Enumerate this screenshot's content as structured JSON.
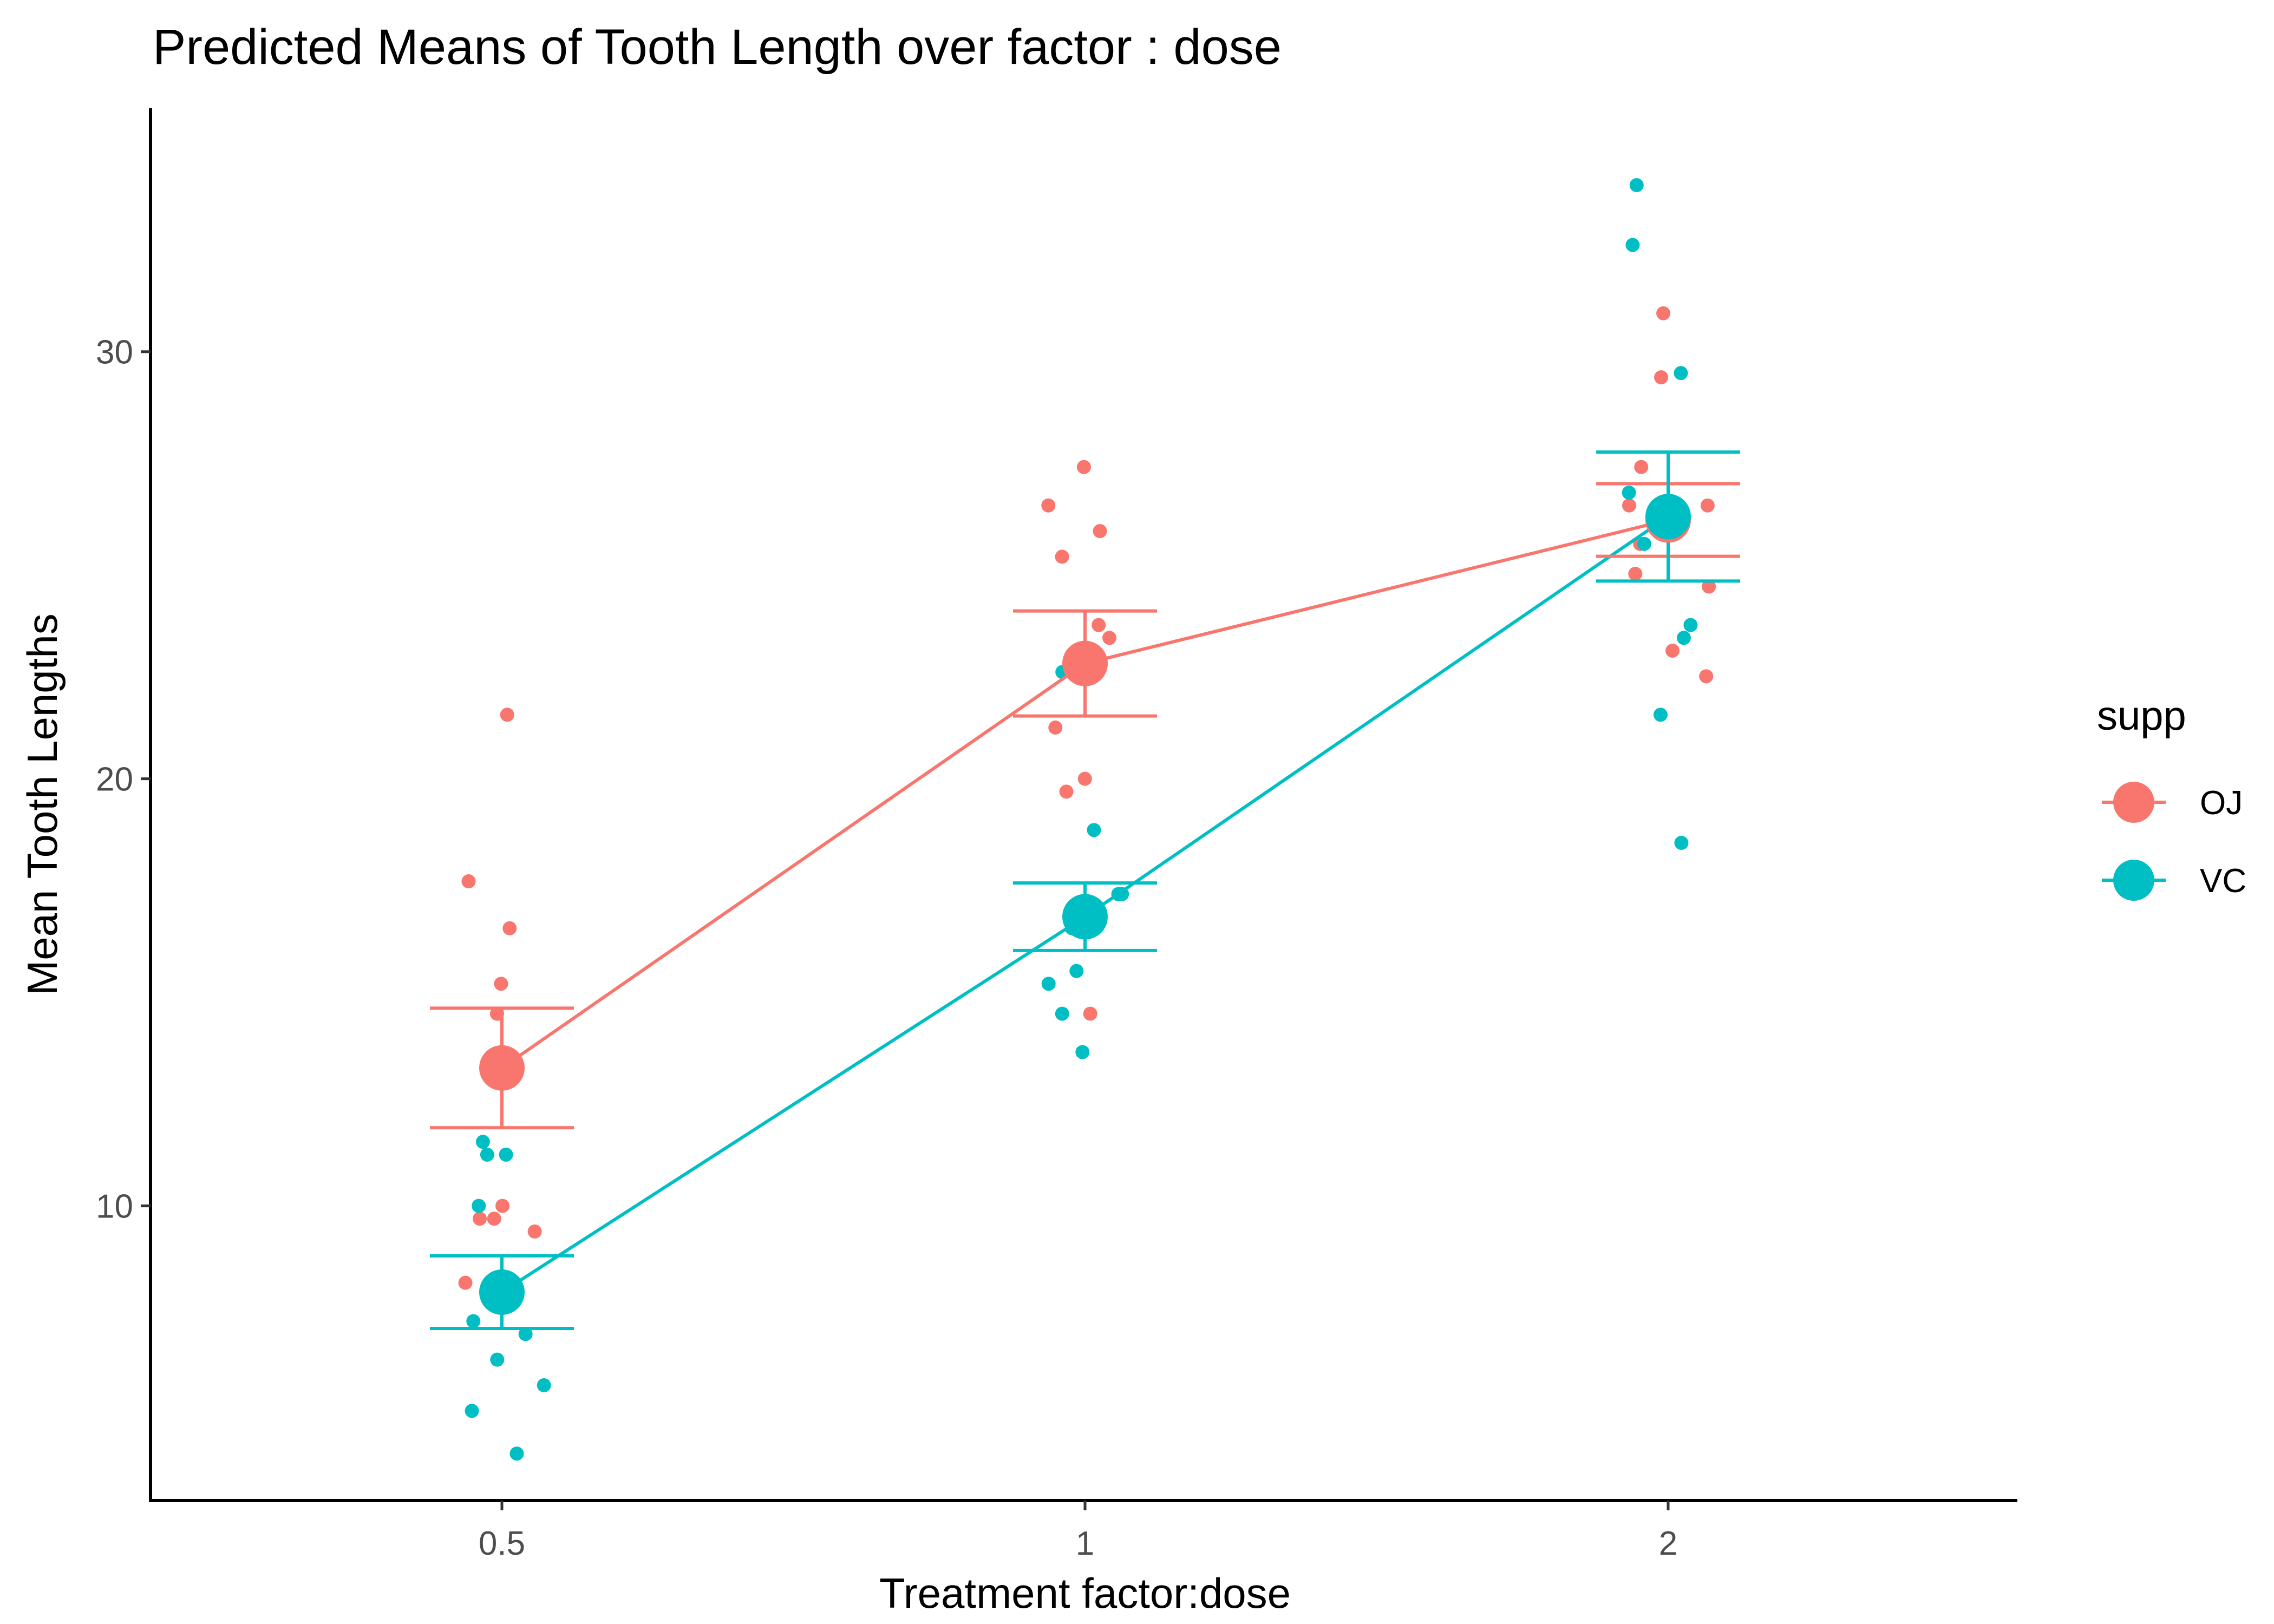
{
  "chart_data": {
    "type": "line",
    "title": "Predicted Means of Tooth Length over factor : dose",
    "xlabel": "Treatment factor:dose",
    "ylabel": "Mean Tooth Lengths",
    "categories": [
      "0.5",
      "1",
      "2"
    ],
    "y_ticks": [
      10,
      20,
      30
    ],
    "ylim": [
      3.1,
      35.7
    ],
    "grid": false,
    "legend": {
      "title": "supp",
      "position": "right"
    },
    "series": [
      {
        "name": "OJ",
        "color": "#F8766D",
        "means": [
          13.23,
          22.7,
          26.06
        ],
        "ci_lower": [
          11.83,
          21.47,
          25.21
        ],
        "ci_upper": [
          14.63,
          23.93,
          26.91
        ],
        "observations": [
          {
            "category": "0.5",
            "y": 15.2
          },
          {
            "category": "0.5",
            "y": 21.5
          },
          {
            "category": "0.5",
            "y": 17.6
          },
          {
            "category": "0.5",
            "y": 9.7
          },
          {
            "category": "0.5",
            "y": 14.5
          },
          {
            "category": "0.5",
            "y": 10.0
          },
          {
            "category": "0.5",
            "y": 8.2
          },
          {
            "category": "0.5",
            "y": 9.4
          },
          {
            "category": "0.5",
            "y": 16.5
          },
          {
            "category": "0.5",
            "y": 9.7
          },
          {
            "category": "1",
            "y": 19.7
          },
          {
            "category": "1",
            "y": 23.3
          },
          {
            "category": "1",
            "y": 23.6
          },
          {
            "category": "1",
            "y": 26.4
          },
          {
            "category": "1",
            "y": 20.0
          },
          {
            "category": "1",
            "y": 25.2
          },
          {
            "category": "1",
            "y": 25.8
          },
          {
            "category": "1",
            "y": 21.2
          },
          {
            "category": "1",
            "y": 14.5
          },
          {
            "category": "1",
            "y": 27.3
          },
          {
            "category": "2",
            "y": 25.5
          },
          {
            "category": "2",
            "y": 26.4
          },
          {
            "category": "2",
            "y": 22.4
          },
          {
            "category": "2",
            "y": 24.5
          },
          {
            "category": "2",
            "y": 24.8
          },
          {
            "category": "2",
            "y": 30.9
          },
          {
            "category": "2",
            "y": 26.4
          },
          {
            "category": "2",
            "y": 27.3
          },
          {
            "category": "2",
            "y": 29.4
          },
          {
            "category": "2",
            "y": 23.0
          }
        ]
      },
      {
        "name": "VC",
        "color": "#00BFC4",
        "means": [
          7.98,
          16.77,
          26.14
        ],
        "ci_lower": [
          7.13,
          15.98,
          24.63
        ],
        "ci_upper": [
          8.83,
          17.56,
          27.65
        ],
        "observations": [
          {
            "category": "0.5",
            "y": 4.2
          },
          {
            "category": "0.5",
            "y": 11.5
          },
          {
            "category": "0.5",
            "y": 7.3
          },
          {
            "category": "0.5",
            "y": 5.8
          },
          {
            "category": "0.5",
            "y": 6.4
          },
          {
            "category": "0.5",
            "y": 10.0
          },
          {
            "category": "0.5",
            "y": 11.2
          },
          {
            "category": "0.5",
            "y": 11.2
          },
          {
            "category": "0.5",
            "y": 5.2
          },
          {
            "category": "0.5",
            "y": 7.0
          },
          {
            "category": "1",
            "y": 16.5
          },
          {
            "category": "1",
            "y": 16.5
          },
          {
            "category": "1",
            "y": 15.2
          },
          {
            "category": "1",
            "y": 17.3
          },
          {
            "category": "1",
            "y": 22.5
          },
          {
            "category": "1",
            "y": 17.3
          },
          {
            "category": "1",
            "y": 13.6
          },
          {
            "category": "1",
            "y": 14.5
          },
          {
            "category": "1",
            "y": 18.8
          },
          {
            "category": "1",
            "y": 15.5
          },
          {
            "category": "2",
            "y": 23.6
          },
          {
            "category": "2",
            "y": 18.5
          },
          {
            "category": "2",
            "y": 33.9
          },
          {
            "category": "2",
            "y": 25.5
          },
          {
            "category": "2",
            "y": 26.4
          },
          {
            "category": "2",
            "y": 32.5
          },
          {
            "category": "2",
            "y": 26.7
          },
          {
            "category": "2",
            "y": 21.5
          },
          {
            "category": "2",
            "y": 23.3
          },
          {
            "category": "2",
            "y": 29.5
          }
        ]
      }
    ]
  }
}
